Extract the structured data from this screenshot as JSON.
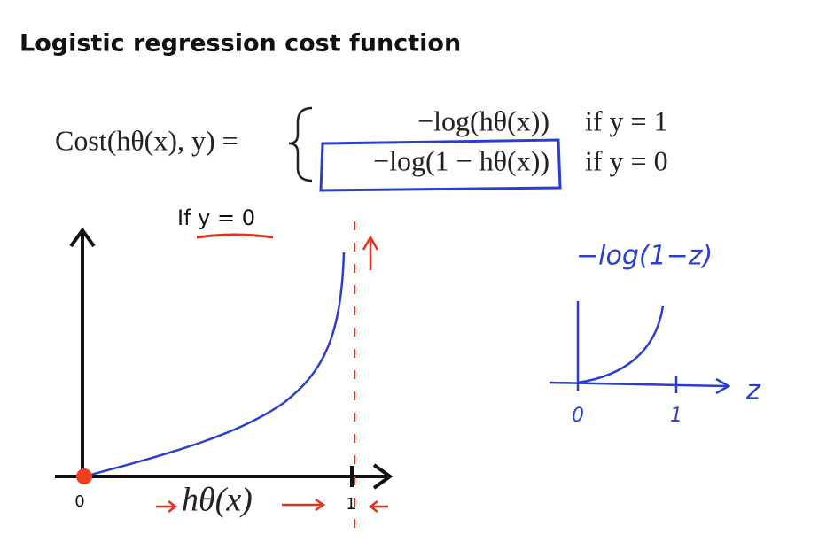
{
  "header": {
    "title": "Logistic regression cost function"
  },
  "formula": {
    "lhs": "Cost(hθ(x), y) =",
    "cases": [
      {
        "expr": "−log(hθ(x))",
        "condition": "if y = 1"
      },
      {
        "expr": "−log(1 − hθ(x))",
        "condition": "if y = 0"
      }
    ]
  },
  "left_plot": {
    "label": "If y = 0",
    "x_axis_label": "hθ(x)",
    "ticks": [
      "0",
      "1"
    ]
  },
  "sketch": {
    "label": "−log(1−z)",
    "axis_label": "z",
    "ticks": [
      "0",
      "1"
    ]
  }
}
